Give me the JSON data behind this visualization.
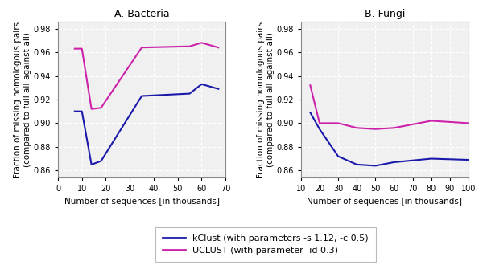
{
  "bacteria_kclust_x": [
    7,
    10,
    14,
    18,
    35,
    55,
    60,
    67
  ],
  "bacteria_kclust_y": [
    0.91,
    0.91,
    0.865,
    0.868,
    0.923,
    0.925,
    0.933,
    0.929
  ],
  "bacteria_uclust_x": [
    7,
    10,
    14,
    18,
    35,
    55,
    60,
    67
  ],
  "bacteria_uclust_y": [
    0.963,
    0.963,
    0.912,
    0.913,
    0.964,
    0.965,
    0.968,
    0.964
  ],
  "fungi_kclust_x": [
    15,
    20,
    30,
    40,
    50,
    60,
    80,
    100
  ],
  "fungi_kclust_y": [
    0.909,
    0.895,
    0.872,
    0.865,
    0.864,
    0.867,
    0.87,
    0.869
  ],
  "fungi_uclust_x": [
    15,
    20,
    30,
    40,
    50,
    60,
    80,
    100
  ],
  "fungi_uclust_y": [
    0.932,
    0.9,
    0.9,
    0.896,
    0.895,
    0.896,
    0.902,
    0.9
  ],
  "kclust_color": "#1a1aaa",
  "uclust_color": "#cc22aa",
  "title_bacteria": "A. Bacteria",
  "title_fungi": "B. Fungi",
  "ylabel": "Fraction of missing homologous pairs\n(compared to full all-against-all)",
  "xlabel": "Number of sequences [in thousands]",
  "ylim": [
    0.854,
    0.986
  ],
  "yticks": [
    0.86,
    0.88,
    0.9,
    0.92,
    0.94,
    0.96,
    0.98
  ],
  "bacteria_xlim": [
    0,
    70
  ],
  "bacteria_xticks": [
    0,
    10,
    20,
    30,
    40,
    50,
    60,
    70
  ],
  "fungi_xlim": [
    10,
    100
  ],
  "fungi_xticks": [
    10,
    20,
    30,
    40,
    50,
    60,
    70,
    80,
    90,
    100
  ],
  "legend_kclust": "kClust (with parameters -s 1.12, -c 0.5)",
  "legend_uclust": "UCLUST (with parameter -id 0.3)",
  "plot_bg": "#f0f0f0",
  "fig_bg": "#f0f0f0"
}
